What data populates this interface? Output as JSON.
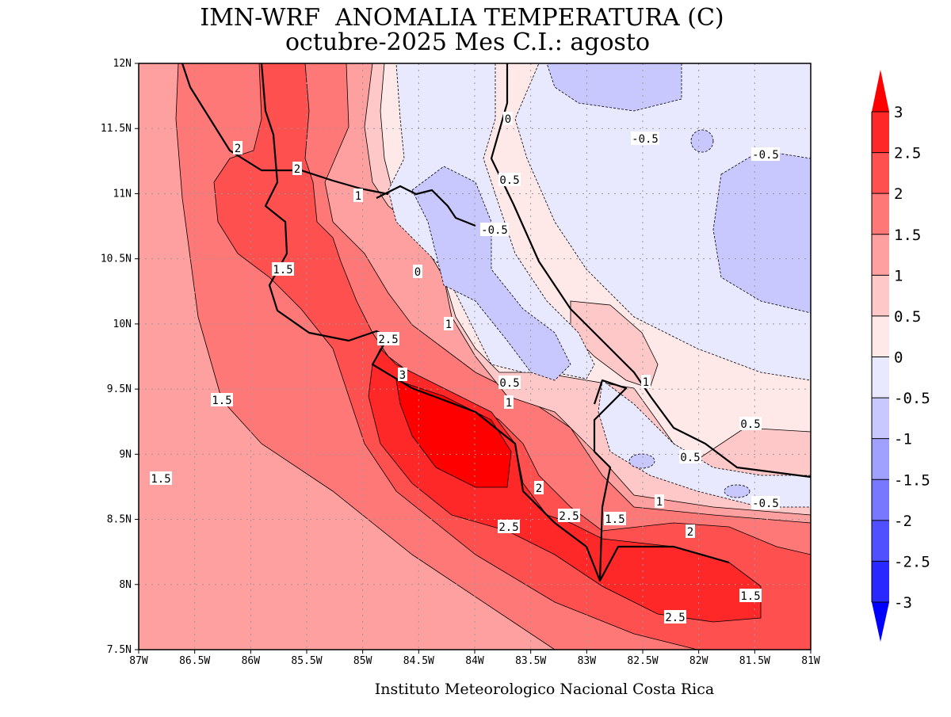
{
  "title": {
    "line1": "IMN-WRF  ANOMALIA TEMPERATURA (C)",
    "line2": "octubre-2025 Mes C.I.: agosto"
  },
  "footer": "Instituto Meteorologico Nacional Costa Rica",
  "axes": {
    "lat_ticks": [
      "12N",
      "11.5N",
      "11N",
      "10.5N",
      "10N",
      "9.5N",
      "9N",
      "8.5N",
      "8N",
      "7.5N"
    ],
    "lon_ticks": [
      "87W",
      "86.5W",
      "86W",
      "85.5W",
      "85W",
      "84.5W",
      "84W",
      "83.5W",
      "83W",
      "82.5W",
      "82W",
      "81.5W",
      "81W"
    ]
  },
  "colorbar": {
    "labels": [
      "3",
      "2.5",
      "2",
      "1.5",
      "1",
      "0.5",
      "0",
      "-0.5",
      "-1",
      "-1.5",
      "-2",
      "-2.5",
      "-3"
    ],
    "colors": [
      "#ff0000",
      "#ff2828",
      "#ff5050",
      "#ff7878",
      "#ffa0a0",
      "#ffc8c8",
      "#ffe8e8",
      "#e8e8ff",
      "#c8c8ff",
      "#a0a0ff",
      "#7878ff",
      "#5050ff",
      "#2828ff",
      "#0000ff"
    ]
  },
  "contour_labels": [
    "2",
    "2",
    "1",
    "1.5",
    "0",
    "1",
    "2.5",
    "3",
    "0.5",
    "1",
    "1.5",
    "1.5",
    "2",
    "2.5",
    "2.5",
    "1.5",
    "2",
    "1.5",
    "2.5",
    "1",
    "-0.5",
    "0.5",
    "0.5",
    "1",
    "-0.5",
    "0.5",
    "0",
    "-0.5",
    "-0.5"
  ]
}
